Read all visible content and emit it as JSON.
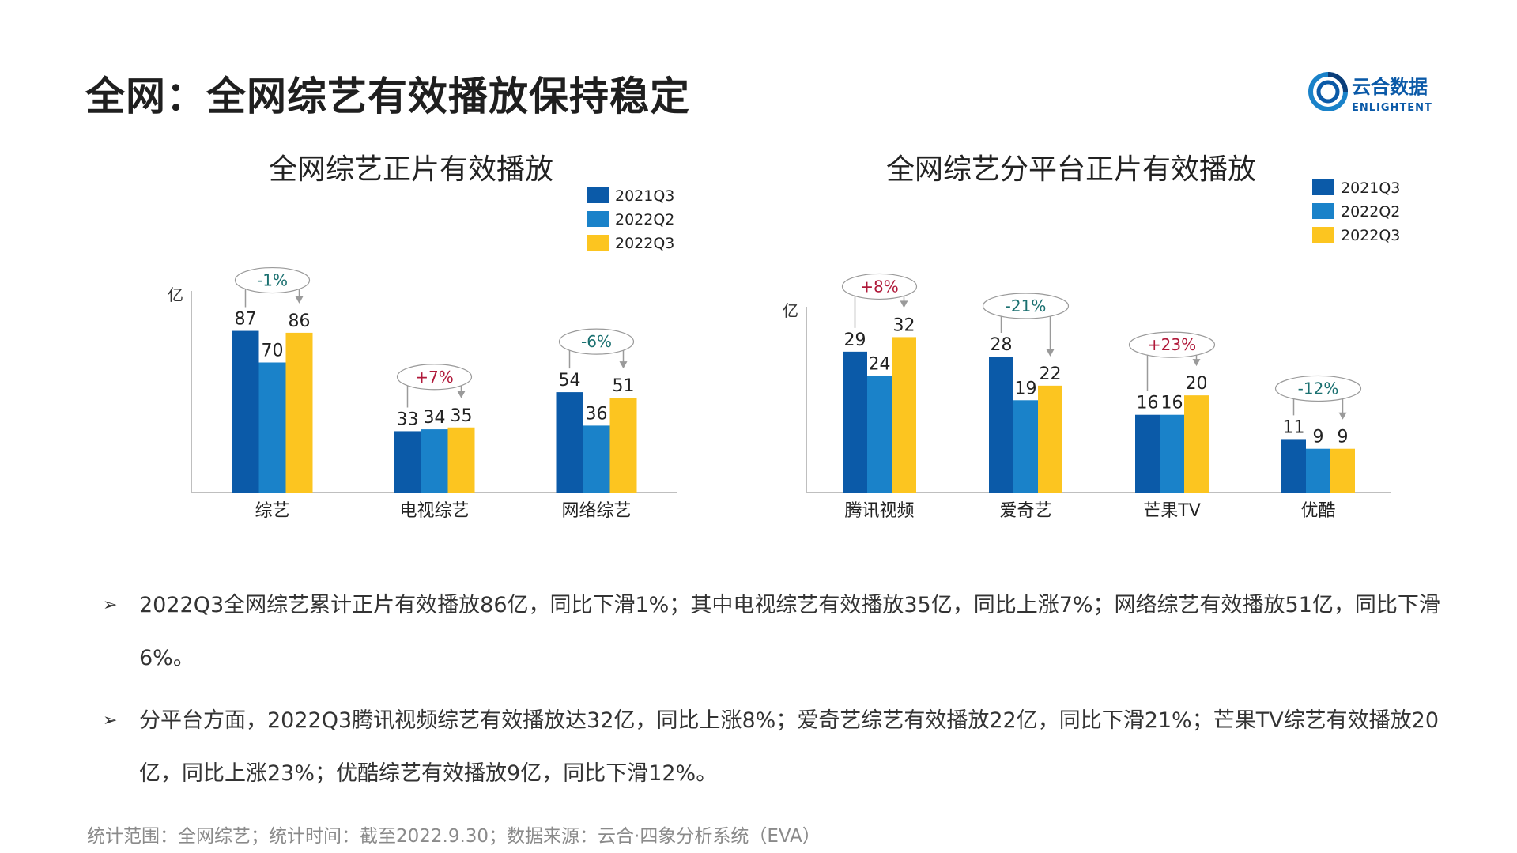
{
  "page": {
    "title": "全网：全网综艺有效播放保持稳定",
    "footnote": "统计范围：全网综艺；统计时间：截至2022.9.30；数据来源：云合·四象分析系统（EVA）",
    "logo": {
      "name": "云合数据",
      "subname": "ENLIGHTENT"
    }
  },
  "colors": {
    "2021Q3": "#0b5aa8",
    "2022Q2": "#1a82c9",
    "2022Q3": "#fcc520",
    "change_negative": "#1a7070",
    "change_positive": "#b0193a",
    "axis": "#bfbfbf"
  },
  "chart_data": [
    {
      "type": "bar",
      "title": "全网综艺正片有效播放",
      "ylabel": "亿",
      "ylim": [
        0,
        100
      ],
      "categories": [
        "综艺",
        "电视综艺",
        "网络综艺"
      ],
      "series": [
        {
          "name": "2021Q3",
          "values": [
            87,
            33,
            54
          ]
        },
        {
          "name": "2022Q2",
          "values": [
            70,
            34,
            36
          ]
        },
        {
          "name": "2022Q3",
          "values": [
            86,
            35,
            51
          ]
        }
      ],
      "changes": [
        "-1%",
        "+7%",
        "-6%"
      ],
      "legend": "top-right"
    },
    {
      "type": "bar",
      "title": "全网综艺分平台正片有效播放",
      "ylabel": "亿",
      "ylim": [
        0,
        35
      ],
      "categories": [
        "腾讯视频",
        "爱奇艺",
        "芒果TV",
        "优酷"
      ],
      "series": [
        {
          "name": "2021Q3",
          "values": [
            29,
            28,
            16,
            11
          ]
        },
        {
          "name": "2022Q2",
          "values": [
            24,
            19,
            16,
            9
          ]
        },
        {
          "name": "2022Q3",
          "values": [
            32,
            22,
            20,
            9
          ]
        }
      ],
      "changes": [
        "+8%",
        "-21%",
        "+23%",
        "-12%"
      ],
      "legend": "top-right"
    }
  ],
  "bullets": [
    "2022Q3全网综艺累计正片有效播放86亿，同比下滑1%；其中电视综艺有效播放35亿，同比上涨7%；网络综艺有效播放51亿，同比下滑6%。",
    "分平台方面，2022Q3腾讯视频综艺有效播放达32亿，同比上涨8%；爱奇艺综艺有效播放22亿，同比下滑21%；芒果TV综艺有效播放20亿，同比上涨23%；优酷综艺有效播放9亿，同比下滑12%。"
  ],
  "bullet_marker": "➢"
}
